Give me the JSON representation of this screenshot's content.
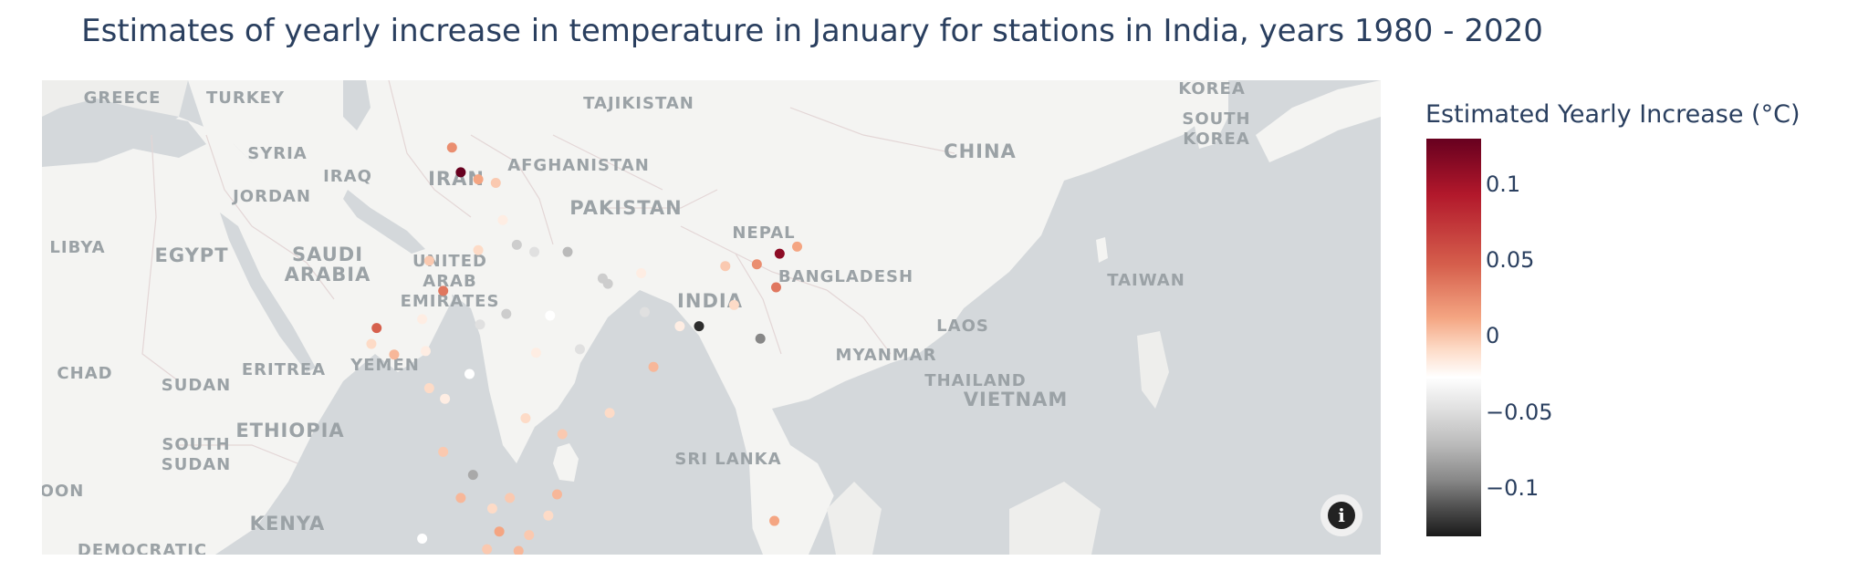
{
  "title": "Estimates of yearly increase in temperature in January for stations in India, years 1980 - 2020",
  "colorbar": {
    "title": "Estimated Yearly Increase (°C)",
    "ticks": [
      "0.1",
      "0.05",
      "0",
      "−0.05",
      "−0.1"
    ]
  },
  "map_labels": {
    "greece": "GREECE",
    "turkey": "TURKEY",
    "tajikistan": "TAJIKISTAN",
    "korea": "KOREA",
    "south_korea": "SOUTH\nKOREA",
    "syria": "SYRIA",
    "iraq": "IRAQ",
    "iran": "IRAN",
    "afghanistan": "AFGHANISTAN",
    "china": "CHINA",
    "jordan": "JORDAN",
    "pakistan": "PAKISTAN",
    "nepal": "NEPAL",
    "libya": "LIBYA",
    "egypt": "EGYPT",
    "saudi_arabia": "SAUDI\nARABIA",
    "uae": "UNITED\nARAB\nEMIRATES",
    "india": "INDIA",
    "bangladesh": "BANGLADESH",
    "taiwan": "TAIWAN",
    "laos": "LAOS",
    "myanmar": "MYANMAR",
    "chad": "CHAD",
    "sudan": "SUDAN",
    "eritrea": "ERITREA",
    "yemen": "YEMEN",
    "thailand": "THAILAND",
    "vietnam": "VIETNAM",
    "ethiopia": "ETHIOPIA",
    "south_sudan": "SOUTH\nSUDAN",
    "sri_lanka": "SRI LANKA",
    "cameroon": "OON",
    "kenya": "KENYA",
    "drc": "DEMOCRATIC"
  },
  "colors": {
    "ocean": "#d4d8db",
    "land": "#f4f4f2",
    "title_text": "#2a3f5f",
    "label_text": "#9ba2a6"
  },
  "stations": [
    {
      "lon": 74.3,
      "lat": 32.7,
      "value": 0.06
    },
    {
      "lon": 74.8,
      "lat": 31.3,
      "value": 0.13
    },
    {
      "lon": 75.8,
      "lat": 30.9,
      "value": 0.05
    },
    {
      "lon": 76.8,
      "lat": 30.7,
      "value": 0.03
    },
    {
      "lon": 77.2,
      "lat": 28.6,
      "value": 0.01
    },
    {
      "lon": 78.0,
      "lat": 27.2,
      "value": -0.02
    },
    {
      "lon": 79.0,
      "lat": 26.8,
      "value": -0.01
    },
    {
      "lon": 80.9,
      "lat": 26.8,
      "value": -0.03
    },
    {
      "lon": 82.9,
      "lat": 25.3,
      "value": -0.02
    },
    {
      "lon": 85.1,
      "lat": 25.6,
      "value": 0.01
    },
    {
      "lon": 75.8,
      "lat": 26.9,
      "value": 0.02
    },
    {
      "lon": 73.0,
      "lat": 26.3,
      "value": 0.03
    },
    {
      "lon": 72.6,
      "lat": 23.0,
      "value": 0.01
    },
    {
      "lon": 73.8,
      "lat": 24.6,
      "value": 0.07
    },
    {
      "lon": 70.0,
      "lat": 22.5,
      "value": 0.08
    },
    {
      "lon": 69.7,
      "lat": 21.6,
      "value": 0.02
    },
    {
      "lon": 71.0,
      "lat": 21.0,
      "value": 0.04
    },
    {
      "lon": 72.8,
      "lat": 21.2,
      "value": 0.01
    },
    {
      "lon": 75.9,
      "lat": 22.7,
      "value": -0.01
    },
    {
      "lon": 77.4,
      "lat": 23.3,
      "value": -0.02
    },
    {
      "lon": 79.9,
      "lat": 23.2,
      "value": 0.0
    },
    {
      "lon": 81.6,
      "lat": 21.3,
      "value": -0.01
    },
    {
      "lon": 83.2,
      "lat": 25.0,
      "value": -0.02
    },
    {
      "lon": 85.3,
      "lat": 23.4,
      "value": -0.01
    },
    {
      "lon": 87.3,
      "lat": 22.6,
      "value": 0.01
    },
    {
      "lon": 88.4,
      "lat": 22.6,
      "value": -0.12
    },
    {
      "lon": 90.4,
      "lat": 23.8,
      "value": 0.02
    },
    {
      "lon": 91.9,
      "lat": 21.9,
      "value": -0.06
    },
    {
      "lon": 89.9,
      "lat": 26.0,
      "value": 0.03
    },
    {
      "lon": 91.7,
      "lat": 26.1,
      "value": 0.06
    },
    {
      "lon": 93.0,
      "lat": 26.7,
      "value": 0.12
    },
    {
      "lon": 94.0,
      "lat": 27.1,
      "value": 0.05
    },
    {
      "lon": 92.8,
      "lat": 24.8,
      "value": 0.07
    },
    {
      "lon": 73.0,
      "lat": 19.1,
      "value": 0.02
    },
    {
      "lon": 73.9,
      "lat": 18.5,
      "value": 0.01
    },
    {
      "lon": 75.3,
      "lat": 19.9,
      "value": 0.0
    },
    {
      "lon": 79.1,
      "lat": 21.1,
      "value": 0.01
    },
    {
      "lon": 78.5,
      "lat": 17.4,
      "value": 0.02
    },
    {
      "lon": 80.6,
      "lat": 16.5,
      "value": 0.03
    },
    {
      "lon": 83.3,
      "lat": 17.7,
      "value": 0.02
    },
    {
      "lon": 85.8,
      "lat": 20.3,
      "value": 0.04
    },
    {
      "lon": 73.8,
      "lat": 15.5,
      "value": 0.03
    },
    {
      "lon": 74.8,
      "lat": 12.9,
      "value": 0.04
    },
    {
      "lon": 75.5,
      "lat": 14.2,
      "value": -0.04
    },
    {
      "lon": 76.6,
      "lat": 12.3,
      "value": 0.02
    },
    {
      "lon": 77.6,
      "lat": 12.9,
      "value": 0.03
    },
    {
      "lon": 77.0,
      "lat": 11.0,
      "value": 0.05
    },
    {
      "lon": 78.7,
      "lat": 10.8,
      "value": 0.03
    },
    {
      "lon": 80.3,
      "lat": 13.1,
      "value": 0.04
    },
    {
      "lon": 79.8,
      "lat": 11.9,
      "value": 0.02
    },
    {
      "lon": 78.1,
      "lat": 9.9,
      "value": 0.04
    },
    {
      "lon": 76.3,
      "lat": 10.0,
      "value": 0.03
    },
    {
      "lon": 76.9,
      "lat": 8.5,
      "value": 0.06
    },
    {
      "lon": 77.5,
      "lat": 8.1,
      "value": 0.09
    },
    {
      "lon": 79.2,
      "lat": 9.3,
      "value": 0.02
    },
    {
      "lon": 72.6,
      "lat": 10.6,
      "value": 0.0
    },
    {
      "lon": 73.0,
      "lat": 8.3,
      "value": 0.05
    },
    {
      "lon": 92.7,
      "lat": 11.6,
      "value": 0.05
    }
  ]
}
